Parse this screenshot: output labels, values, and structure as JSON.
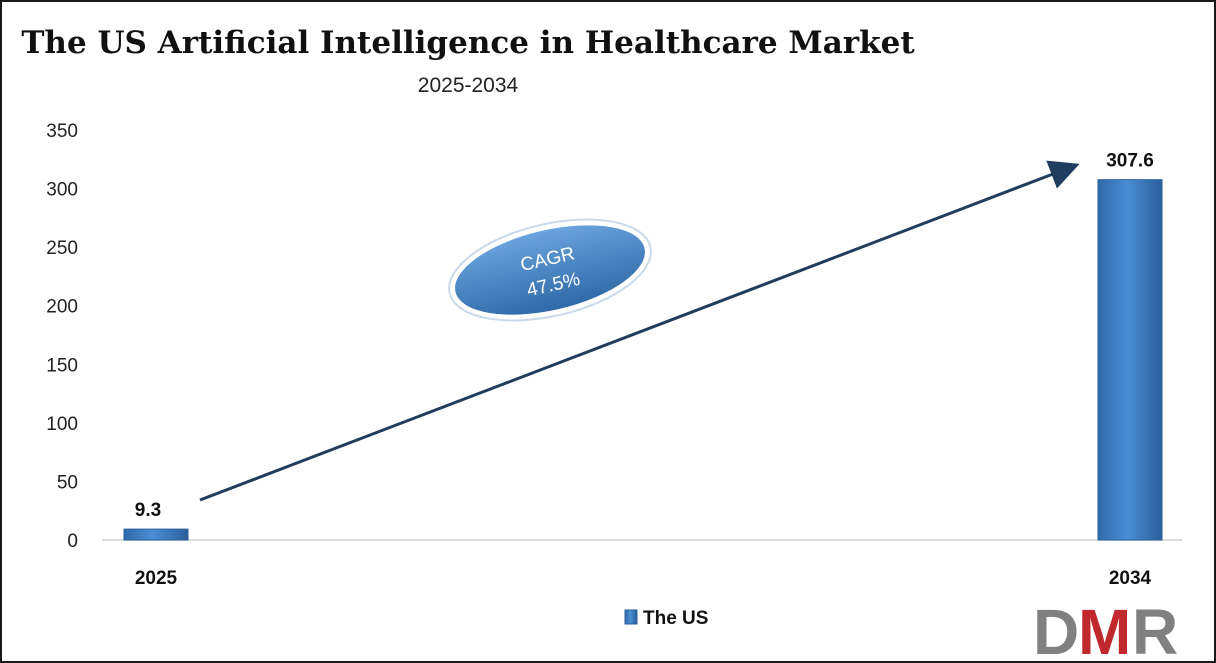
{
  "chart_data": {
    "type": "bar",
    "title": "The US Artificial Intelligence in Healthcare Market",
    "subtitle": "2025-2034",
    "categories": [
      "2025",
      "2034"
    ],
    "series": [
      {
        "name": "The US",
        "values": [
          9.3,
          307.6
        ],
        "data_labels": [
          "9.3",
          "307.6"
        ]
      }
    ],
    "ylim": [
      0,
      350
    ],
    "yticks": [
      "0",
      "50",
      "100",
      "150",
      "200",
      "250",
      "300",
      "350"
    ],
    "grid": false,
    "legend_position": "bottom-center",
    "annotation": {
      "line1": "CAGR",
      "line2": "47.5%"
    },
    "colors": {
      "bar": "#3d7cc4",
      "arrow": "#1f3d5c",
      "ellipse": "#3d7cc4"
    }
  },
  "logo": {
    "text": "DMR",
    "colors": [
      "#808080",
      "#c0282d",
      "#808080"
    ]
  }
}
